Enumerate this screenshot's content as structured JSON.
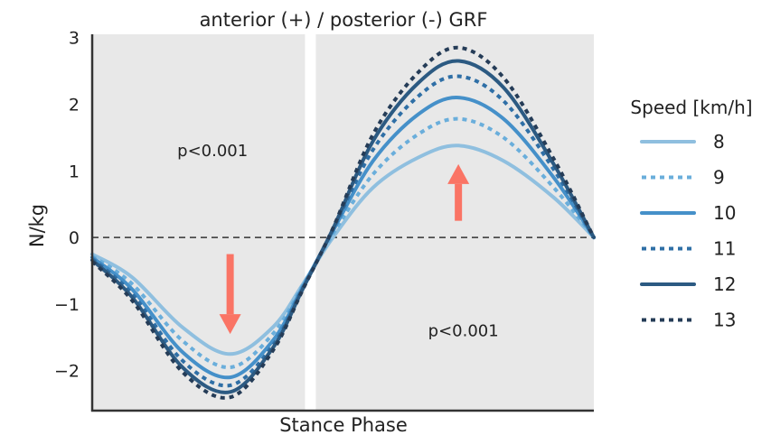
{
  "chart_data": {
    "type": "line",
    "title": "anterior (+) / posterior (-) GRF",
    "xlabel": "Stance Phase",
    "ylabel": "N/kg",
    "ylim": [
      -2.6,
      3.05
    ],
    "yticks": [
      3,
      2,
      1,
      0,
      -1,
      -2
    ],
    "ytick_labels": [
      "3",
      "2",
      "1",
      "0",
      "−1",
      "−2"
    ],
    "grid": false,
    "zero_line": {
      "y": 0,
      "style": "dashed"
    },
    "x_range": [
      0,
      100
    ],
    "gap_at_x": 43.5,
    "legend": {
      "title": "Speed [km/h]",
      "placement": "right"
    },
    "annotations": [
      {
        "text": "p<0.001",
        "x": 24,
        "y": 1.3
      },
      {
        "text": "p<0.001",
        "x": 74,
        "y": -1.4
      }
    ],
    "arrows": [
      {
        "direction": "down",
        "x": 27.5,
        "y_from": -0.25,
        "y_to": -1.45,
        "color": "#fa7465"
      },
      {
        "direction": "up",
        "x": 73,
        "y_from": 0.25,
        "y_to": 1.1,
        "color": "#fa7465"
      }
    ],
    "series": [
      {
        "name": "8",
        "style": "solid",
        "color": "#8fbfdf",
        "x": [
          0,
          8,
          18,
          27.5,
          36,
          42,
          48,
          56,
          65,
          73,
          82,
          92,
          100
        ],
        "y": [
          -0.25,
          -0.6,
          -1.35,
          -1.75,
          -1.35,
          -0.7,
          0.0,
          0.75,
          1.2,
          1.38,
          1.15,
          0.6,
          0.0
        ]
      },
      {
        "name": "9",
        "style": "dotted",
        "color": "#6aaedb",
        "x": [
          0,
          8,
          18,
          27.5,
          36,
          42,
          48,
          56,
          65,
          73,
          82,
          92,
          100
        ],
        "y": [
          -0.28,
          -0.7,
          -1.55,
          -1.95,
          -1.45,
          -0.72,
          0.05,
          0.95,
          1.55,
          1.78,
          1.5,
          0.75,
          0.0
        ]
      },
      {
        "name": "10",
        "style": "solid",
        "color": "#4590c9",
        "x": [
          0,
          8,
          18,
          27.5,
          36,
          42,
          48,
          56,
          65,
          73,
          82,
          92,
          100
        ],
        "y": [
          -0.3,
          -0.78,
          -1.72,
          -2.1,
          -1.55,
          -0.74,
          0.1,
          1.15,
          1.85,
          2.1,
          1.78,
          0.9,
          0.0
        ]
      },
      {
        "name": "11",
        "style": "dotted",
        "color": "#2f6fa6",
        "x": [
          0,
          8,
          18,
          27.5,
          36,
          42,
          48,
          56,
          65,
          73,
          82,
          92,
          100
        ],
        "y": [
          -0.32,
          -0.85,
          -1.85,
          -2.22,
          -1.62,
          -0.76,
          0.12,
          1.32,
          2.12,
          2.42,
          2.05,
          1.02,
          0.0
        ]
      },
      {
        "name": "12",
        "style": "solid",
        "color": "#2c5a82",
        "x": [
          0,
          8,
          18,
          27.5,
          36,
          42,
          48,
          56,
          65,
          73,
          82,
          92,
          100
        ],
        "y": [
          -0.34,
          -0.9,
          -1.95,
          -2.32,
          -1.66,
          -0.77,
          0.13,
          1.45,
          2.32,
          2.65,
          2.25,
          1.1,
          0.0
        ]
      },
      {
        "name": "13",
        "style": "dotted",
        "color": "#253c57",
        "x": [
          0,
          8,
          18,
          27.5,
          36,
          42,
          48,
          56,
          65,
          73,
          82,
          92,
          100
        ],
        "y": [
          -0.36,
          -0.95,
          -2.02,
          -2.4,
          -1.7,
          -0.78,
          0.14,
          1.55,
          2.48,
          2.85,
          2.4,
          1.18,
          0.0
        ]
      }
    ]
  }
}
